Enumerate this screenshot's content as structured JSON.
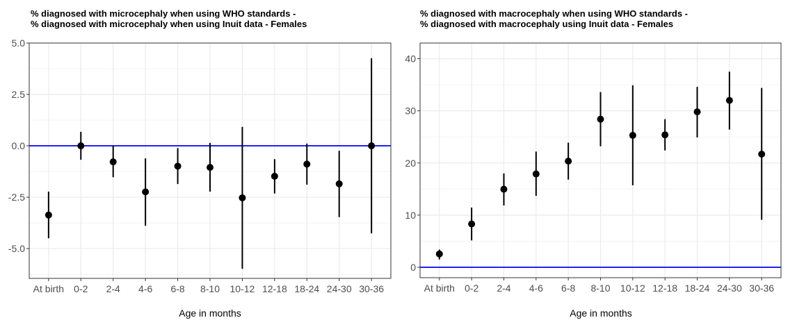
{
  "chart_data": [
    {
      "type": "scatter",
      "title": [
        "% diagnosed with microcephaly when using WHO standards -",
        "% diagnosed with microcephaly when using Inuit data - Females"
      ],
      "xlabel": "Age in months",
      "ylabel": "",
      "categories": [
        "At birth",
        "0-2",
        "2-4",
        "4-6",
        "6-8",
        "8-10",
        "10-12",
        "12-18",
        "18-24",
        "24-30",
        "30-36"
      ],
      "values": [
        -3.37,
        0.0,
        -0.78,
        -2.24,
        -0.99,
        -1.05,
        -2.53,
        -1.48,
        -0.89,
        -1.85,
        0.0
      ],
      "lower": [
        -4.5,
        -0.68,
        -1.53,
        -3.89,
        -1.86,
        -2.23,
        -5.98,
        -2.32,
        -1.89,
        -3.47,
        -4.26
      ],
      "upper": [
        -2.23,
        0.68,
        0.0,
        -0.61,
        -0.11,
        0.14,
        0.92,
        -0.65,
        0.11,
        -0.24,
        4.26
      ],
      "ylim": [
        -6.45,
        5.0
      ],
      "yticks": [
        5.0,
        2.5,
        0.0,
        -2.5,
        -5.0
      ],
      "ytick_labels": [
        "5.0",
        "2.5",
        "0.0",
        "-2.5",
        "-5.0"
      ],
      "reference_line": 0,
      "reference_color": "#0000ff",
      "grid": true
    },
    {
      "type": "scatter",
      "title": [
        "% diagnosed with macrocephaly when using WHO standards -",
        "% diagnosed with macrocephaly using Inuit data - Females"
      ],
      "xlabel": "Age in months",
      "ylabel": "",
      "categories": [
        "At birth",
        "0-2",
        "2-4",
        "4-6",
        "6-8",
        "8-10",
        "10-12",
        "12-18",
        "18-24",
        "24-30",
        "30-36"
      ],
      "values": [
        2.55,
        8.3,
        14.97,
        17.9,
        20.35,
        28.4,
        25.3,
        25.4,
        29.8,
        32.0,
        21.7
      ],
      "lower": [
        1.5,
        5.15,
        11.85,
        13.7,
        16.8,
        23.2,
        15.7,
        22.4,
        24.9,
        26.4,
        9.1
      ],
      "upper": [
        3.4,
        11.45,
        18.0,
        22.2,
        23.9,
        33.6,
        34.9,
        28.4,
        34.6,
        37.5,
        34.4
      ],
      "ylim": [
        -2.0,
        43.0
      ],
      "yticks": [
        40,
        30,
        20,
        10,
        0
      ],
      "ytick_labels": [
        "40",
        "30",
        "20",
        "10",
        "0"
      ],
      "reference_line": 0,
      "reference_color": "#0000ff",
      "grid": true
    }
  ]
}
